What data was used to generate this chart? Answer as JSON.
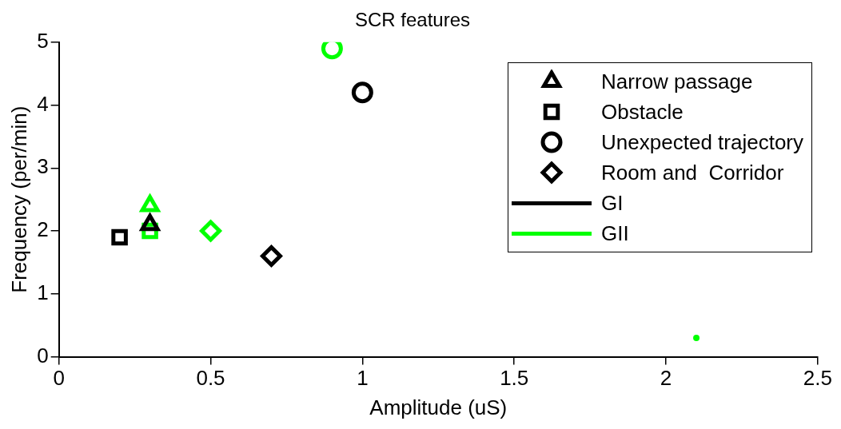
{
  "chart_data": {
    "type": "scatter",
    "title": "SCR features",
    "xlabel": "Amplitude (uS)",
    "ylabel": "Frequency (per/min)",
    "xlim": [
      0,
      2.5
    ],
    "xticks": [
      0,
      0.5,
      1,
      1.5,
      2,
      2.5
    ],
    "ylim": [
      0,
      5
    ],
    "yticks": [
      0,
      1,
      2,
      3,
      4,
      5
    ],
    "grid": false,
    "legend": "top right",
    "series": [
      {
        "name": "Narrow passage",
        "marker": "triangle",
        "color": "#000000",
        "x": [
          0.3,
          0.3
        ],
        "values": [
          2.1,
          2.4
        ],
        "colors": [
          "#000000",
          "#00ff00"
        ]
      },
      {
        "name": "Obstacle",
        "marker": "square",
        "color": "#000000",
        "x": [
          0.2,
          0.3
        ],
        "values": [
          1.9,
          2.0
        ],
        "colors": [
          "#000000",
          "#00ff00"
        ]
      },
      {
        "name": "Unexpected trajectory",
        "marker": "circle",
        "color": "#000000",
        "x": [
          1.0,
          0.9
        ],
        "values": [
          4.2,
          4.9
        ],
        "colors": [
          "#000000",
          "#00ff00"
        ]
      },
      {
        "name": "Room and  Corridor",
        "marker": "diamond",
        "color": "#000000",
        "x": [
          0.7,
          0.5
        ],
        "values": [
          1.6,
          2.0
        ],
        "colors": [
          "#000000",
          "#00ff00"
        ]
      },
      {
        "name": "GI",
        "type": "line",
        "color": "#000000"
      },
      {
        "name": "GII",
        "type": "line",
        "color": "#00ff00"
      },
      {
        "type": "scatter",
        "marker": "circle",
        "color": "#00ff00",
        "x": [
          2.1
        ],
        "values": [
          0.3
        ]
      }
    ]
  }
}
